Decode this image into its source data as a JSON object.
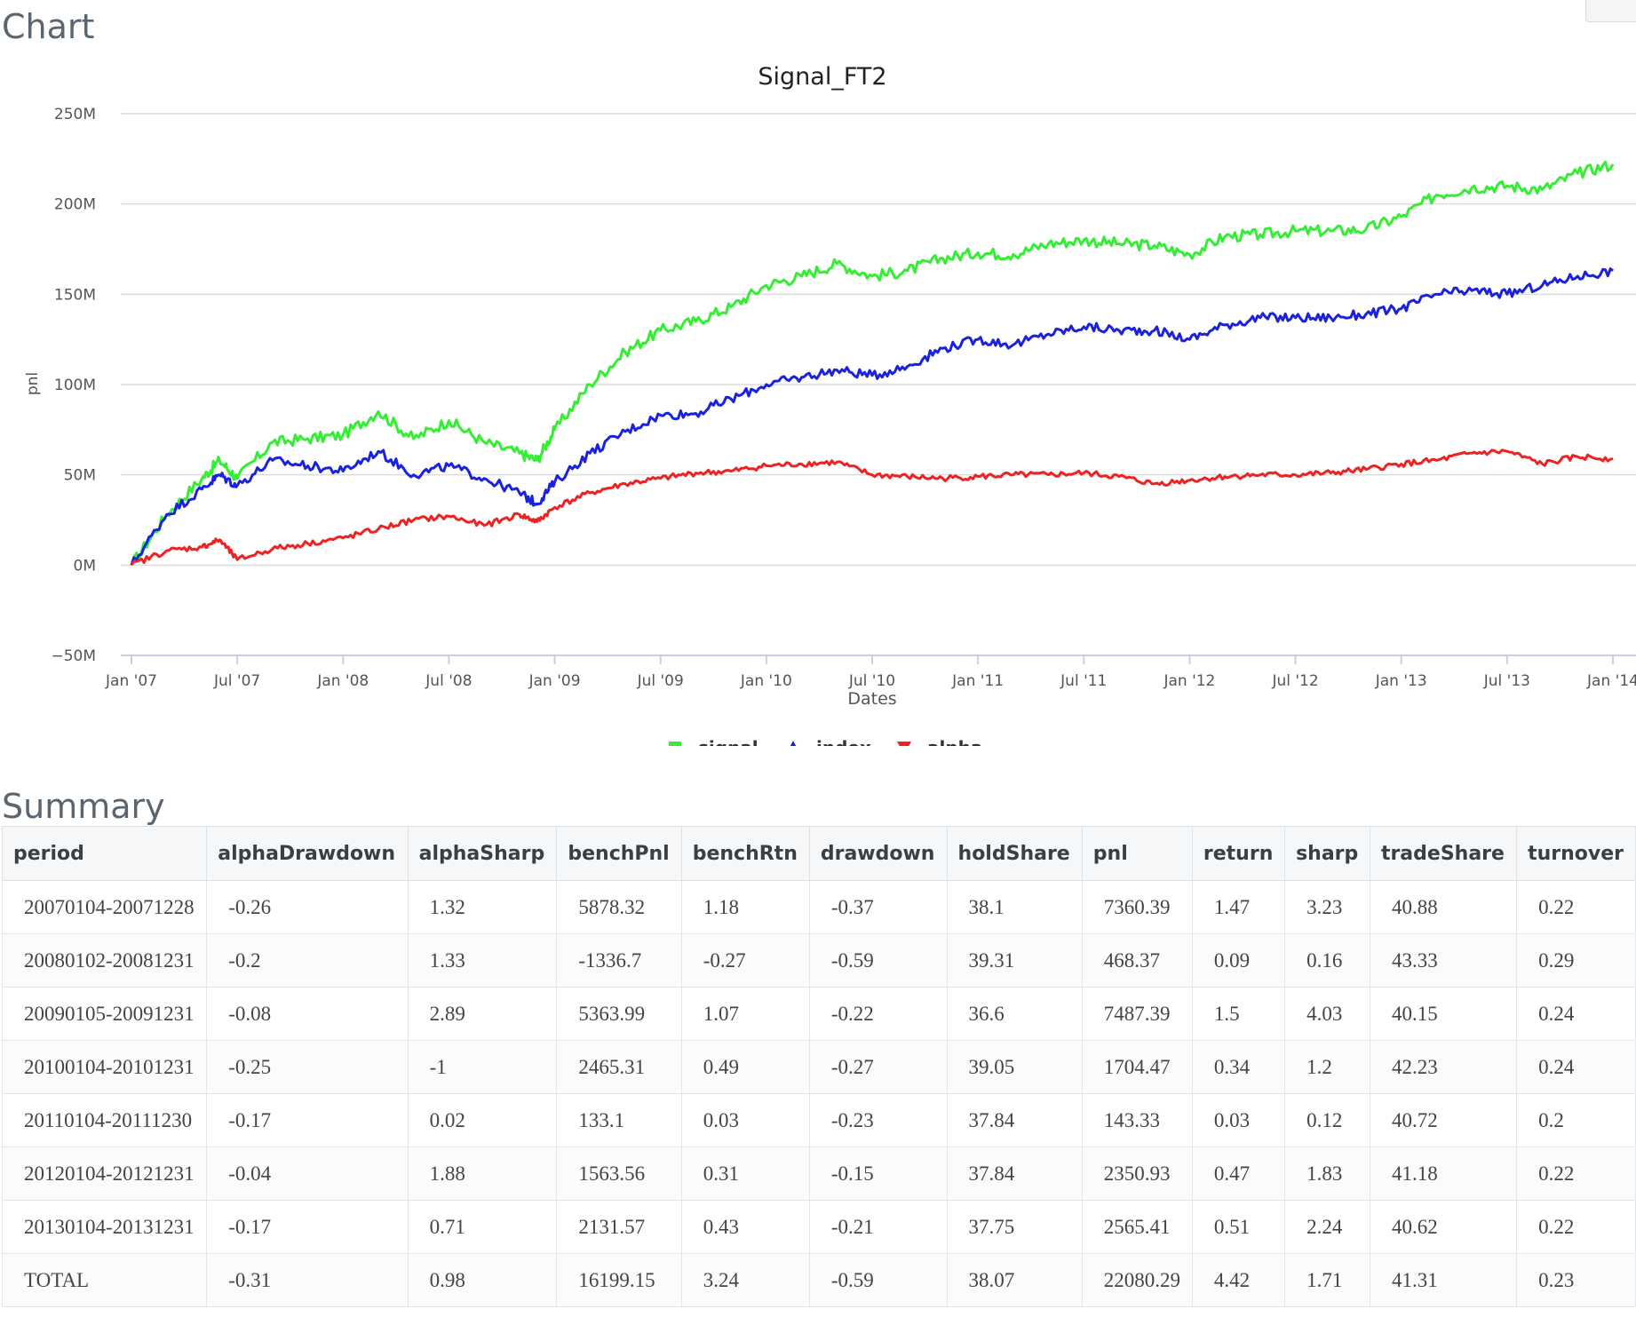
{
  "sections": {
    "chart": "Chart",
    "summary": "Summary"
  },
  "chart_data": {
    "type": "line",
    "title": "Signal_FT2",
    "xlabel": "Dates",
    "ylabel": "pnl",
    "x_ticks": [
      "Jan '07",
      "Jul '07",
      "Jan '08",
      "Jul '08",
      "Jan '09",
      "Jul '09",
      "Jan '10",
      "Jul '10",
      "Jan '11",
      "Jul '11",
      "Jan '12",
      "Jul '12",
      "Jan '13",
      "Jul '13",
      "Jan '14"
    ],
    "y_ticks": [
      "250M",
      "200M",
      "150M",
      "100M",
      "50M",
      "0M",
      "−50M"
    ],
    "ylim": [
      -50,
      250
    ],
    "grid": true,
    "legend_position": "bottom-center",
    "x": [
      "2007-01",
      "2007-03",
      "2007-05",
      "2007-06",
      "2007-07",
      "2007-09",
      "2007-11",
      "2008-01",
      "2008-03",
      "2008-05",
      "2008-07",
      "2008-09",
      "2008-11",
      "2008-12",
      "2009-01",
      "2009-03",
      "2009-05",
      "2009-07",
      "2009-09",
      "2009-11",
      "2010-01",
      "2010-03",
      "2010-05",
      "2010-07",
      "2010-09",
      "2010-11",
      "2011-01",
      "2011-03",
      "2011-05",
      "2011-07",
      "2011-09",
      "2011-11",
      "2012-01",
      "2012-03",
      "2012-05",
      "2012-07",
      "2012-09",
      "2012-11",
      "2013-01",
      "2013-03",
      "2013-05",
      "2013-07",
      "2013-09",
      "2013-11",
      "2014-01"
    ],
    "series": [
      {
        "name": "signal",
        "color": "#33ee33",
        "marker": "square",
        "values": [
          0,
          28,
          48,
          58,
          48,
          68,
          70,
          72,
          85,
          70,
          80,
          68,
          62,
          58,
          75,
          100,
          118,
          130,
          135,
          143,
          155,
          160,
          167,
          160,
          163,
          170,
          173,
          172,
          178,
          180,
          178,
          177,
          172,
          182,
          183,
          185,
          185,
          186,
          193,
          205,
          209,
          210,
          208,
          217,
          222
        ]
      },
      {
        "name": "index",
        "color": "#1a22dd",
        "marker": "triangle-up",
        "values": [
          0,
          28,
          42,
          50,
          44,
          58,
          55,
          52,
          63,
          50,
          55,
          48,
          40,
          34,
          46,
          62,
          74,
          83,
          84,
          92,
          100,
          104,
          108,
          105,
          110,
          120,
          125,
          122,
          128,
          132,
          130,
          130,
          125,
          133,
          137,
          137,
          137,
          139,
          142,
          150,
          152,
          150,
          155,
          160,
          163
        ]
      },
      {
        "name": "alpha",
        "color": "#ee2222",
        "marker": "triangle-down",
        "values": [
          0,
          8,
          10,
          14,
          3,
          9,
          12,
          15,
          20,
          25,
          27,
          22,
          28,
          24,
          32,
          40,
          45,
          48,
          51,
          52,
          55,
          56,
          57,
          50,
          49,
          48,
          49,
          50,
          50,
          51,
          49,
          45,
          47,
          49,
          50,
          50,
          51,
          53,
          56,
          58,
          62,
          63,
          56,
          60,
          59
        ]
      }
    ]
  },
  "summary": {
    "columns": [
      "period",
      "alphaDrawdown",
      "alphaSharp",
      "benchPnl",
      "benchRtn",
      "drawdown",
      "holdShare",
      "pnl",
      "return",
      "sharp",
      "tradeShare",
      "turnover"
    ],
    "rows": [
      [
        "20070104-20071228",
        "-0.26",
        "1.32",
        "5878.32",
        "1.18",
        "-0.37",
        "38.1",
        "7360.39",
        "1.47",
        "3.23",
        "40.88",
        "0.22"
      ],
      [
        "20080102-20081231",
        "-0.2",
        "1.33",
        "-1336.7",
        "-0.27",
        "-0.59",
        "39.31",
        "468.37",
        "0.09",
        "0.16",
        "43.33",
        "0.29"
      ],
      [
        "20090105-20091231",
        "-0.08",
        "2.89",
        "5363.99",
        "1.07",
        "-0.22",
        "36.6",
        "7487.39",
        "1.5",
        "4.03",
        "40.15",
        "0.24"
      ],
      [
        "20100104-20101231",
        "-0.25",
        "-1",
        "2465.31",
        "0.49",
        "-0.27",
        "39.05",
        "1704.47",
        "0.34",
        "1.2",
        "42.23",
        "0.24"
      ],
      [
        "20110104-20111230",
        "-0.17",
        "0.02",
        "133.1",
        "0.03",
        "-0.23",
        "37.84",
        "143.33",
        "0.03",
        "0.12",
        "40.72",
        "0.2"
      ],
      [
        "20120104-20121231",
        "-0.04",
        "1.88",
        "1563.56",
        "0.31",
        "-0.15",
        "37.84",
        "2350.93",
        "0.47",
        "1.83",
        "41.18",
        "0.22"
      ],
      [
        "20130104-20131231",
        "-0.17",
        "0.71",
        "2131.57",
        "0.43",
        "-0.21",
        "37.75",
        "2565.41",
        "0.51",
        "2.24",
        "40.62",
        "0.22"
      ],
      [
        "TOTAL",
        "-0.31",
        "0.98",
        "16199.15",
        "3.24",
        "-0.59",
        "38.07",
        "22080.29",
        "4.42",
        "1.71",
        "41.31",
        "0.23"
      ]
    ]
  }
}
